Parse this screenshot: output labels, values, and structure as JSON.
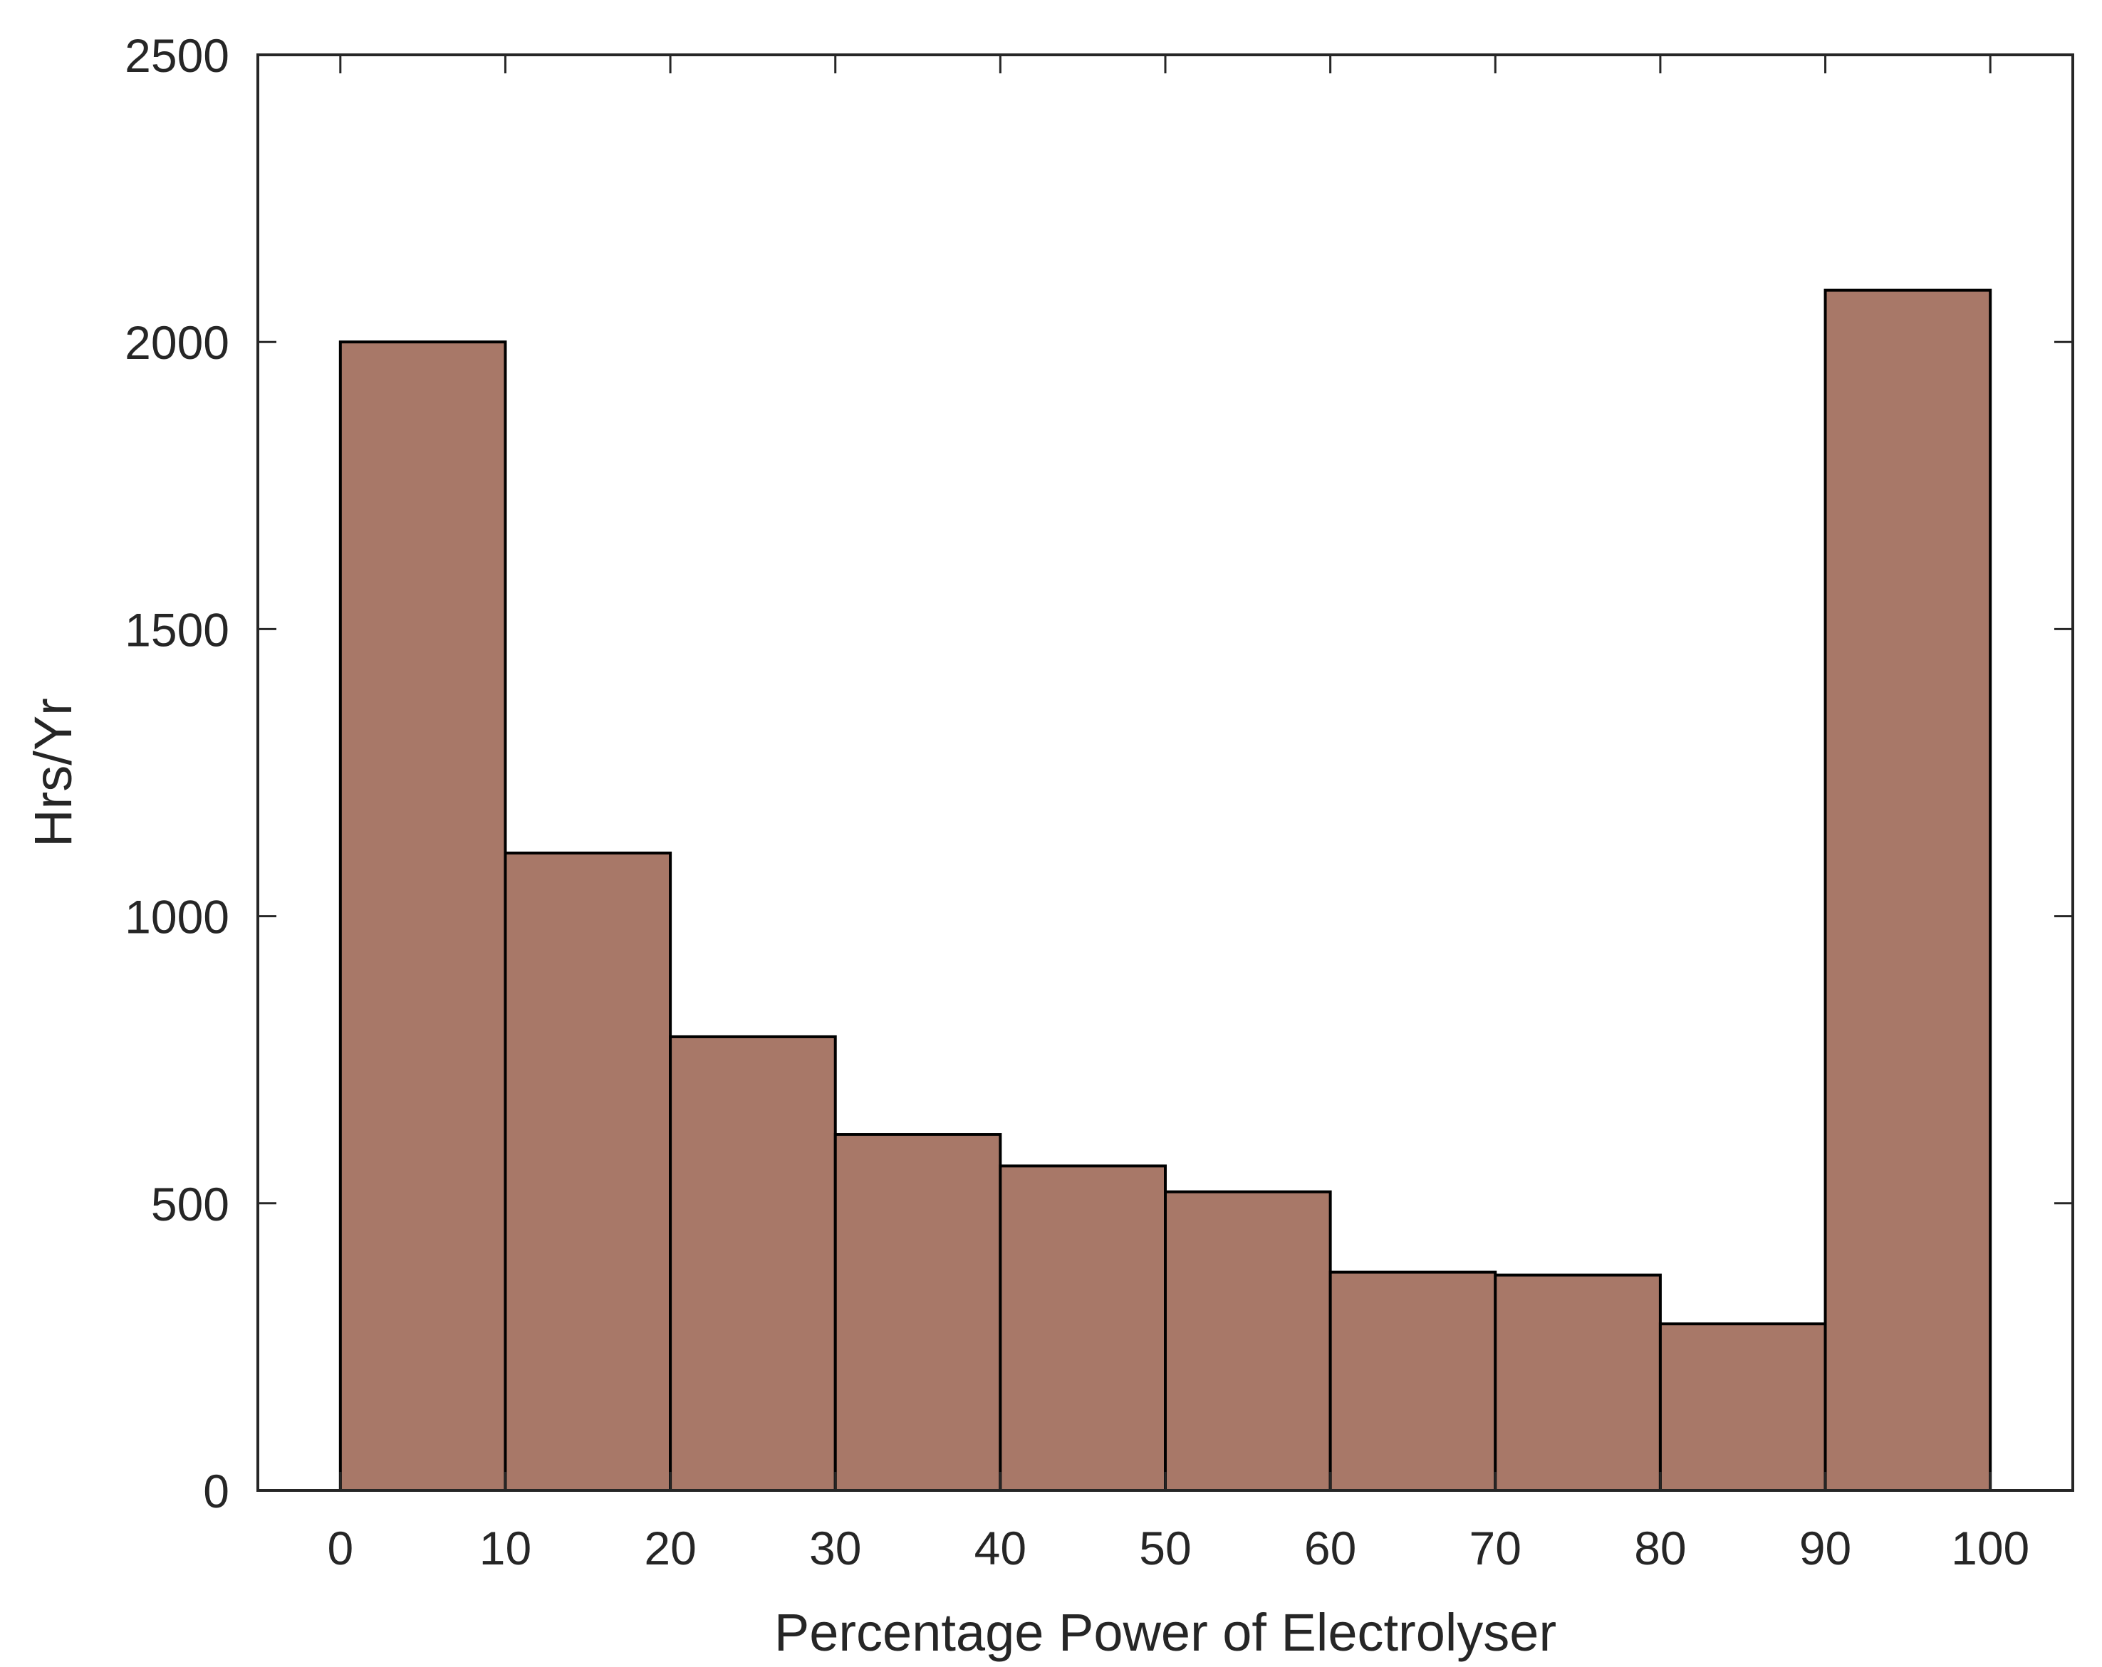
{
  "chart_data": {
    "type": "bar",
    "bin_edges": [
      0,
      10,
      20,
      30,
      40,
      50,
      60,
      70,
      80,
      90,
      100
    ],
    "values": [
      2000,
      1110,
      790,
      620,
      565,
      520,
      380,
      375,
      290,
      2090
    ],
    "xlabel": "Percentage Power of Electrolyser",
    "ylabel": "Hrs/Yr",
    "xlim": [
      -5,
      105
    ],
    "ylim": [
      0,
      2500
    ],
    "xticks": [
      0,
      10,
      20,
      30,
      40,
      50,
      60,
      70,
      80,
      90,
      100
    ],
    "yticks": [
      0,
      500,
      1000,
      1500,
      2000,
      2500
    ],
    "xtick_labels": [
      "0",
      "10",
      "20",
      "30",
      "40",
      "50",
      "60",
      "70",
      "80",
      "90",
      "100"
    ],
    "ytick_labels": [
      "0",
      "500",
      "1000",
      "1500",
      "2000",
      "2500"
    ],
    "bar_color": "#a87868",
    "edge_color": "#000000",
    "grid": false,
    "legend": "none"
  }
}
